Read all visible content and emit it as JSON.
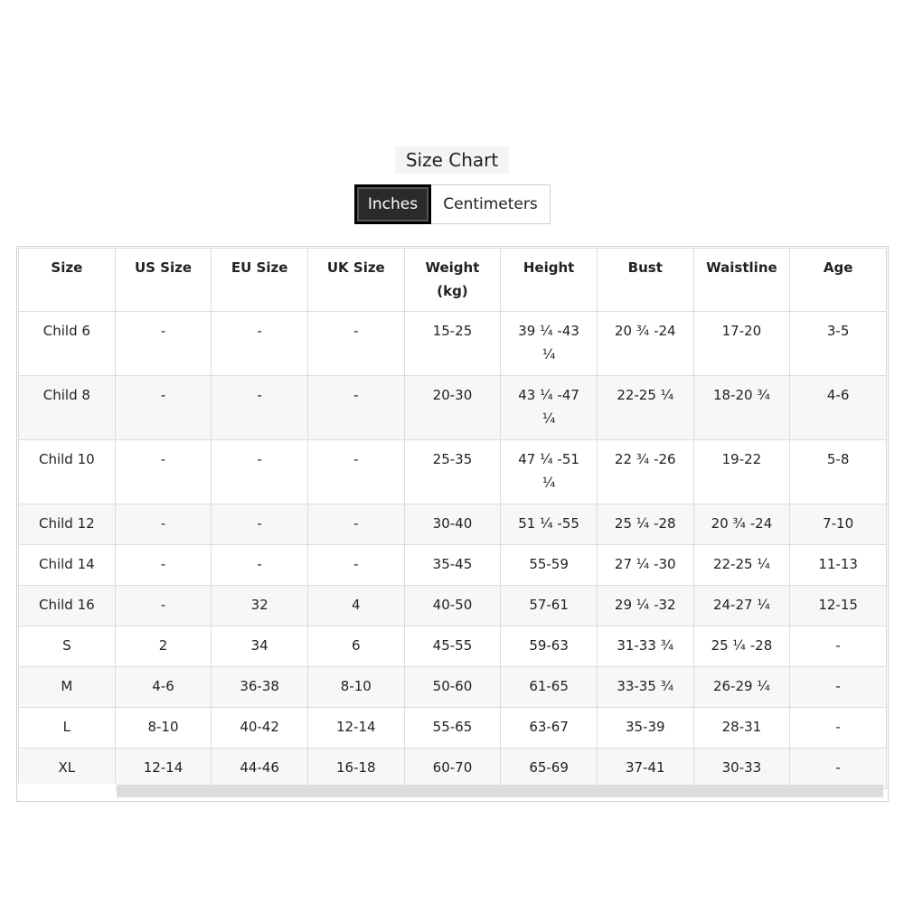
{
  "title": "Size Chart",
  "units": {
    "active": "Inches",
    "inactive": "Centimeters"
  },
  "table": {
    "headers": [
      "Size",
      "US Size",
      "EU Size",
      "UK Size",
      "Weight (kg)",
      "Height",
      "Bust",
      "Waistline",
      "Age"
    ],
    "rows": [
      [
        "Child 6",
        "-",
        "-",
        "-",
        "15-25",
        "39 ¼ -43 ¼",
        "20 ¾ -24",
        "17-20",
        "3-5"
      ],
      [
        "Child 8",
        "-",
        "-",
        "-",
        "20-30",
        "43 ¼ -47 ¼",
        "22-25 ¼",
        "18-20 ¾",
        "4-6"
      ],
      [
        "Child 10",
        "-",
        "-",
        "-",
        "25-35",
        "47 ¼ -51 ¼",
        "22 ¾ -26",
        "19-22",
        "5-8"
      ],
      [
        "Child 12",
        "-",
        "-",
        "-",
        "30-40",
        "51 ¼ -55",
        "25 ¼ -28",
        "20 ¾ -24",
        "7-10"
      ],
      [
        "Child 14",
        "-",
        "-",
        "-",
        "35-45",
        "55-59",
        "27 ¼ -30",
        "22-25 ¼",
        "11-13"
      ],
      [
        "Child 16",
        "-",
        "32",
        "4",
        "40-50",
        "57-61",
        "29 ¼ -32",
        "24-27 ¼",
        "12-15"
      ],
      [
        "S",
        "2",
        "34",
        "6",
        "45-55",
        "59-63",
        "31-33 ¾",
        "25 ¼ -28",
        "-"
      ],
      [
        "M",
        "4-6",
        "36-38",
        "8-10",
        "50-60",
        "61-65",
        "33-35 ¾",
        "26-29 ¼",
        "-"
      ],
      [
        "L",
        "8-10",
        "40-42",
        "12-14",
        "55-65",
        "63-67",
        "35-39",
        "28-31",
        "-"
      ],
      [
        "XL",
        "12-14",
        "44-46",
        "16-18",
        "60-70",
        "65-69",
        "37-41",
        "30-33",
        "-"
      ]
    ]
  }
}
